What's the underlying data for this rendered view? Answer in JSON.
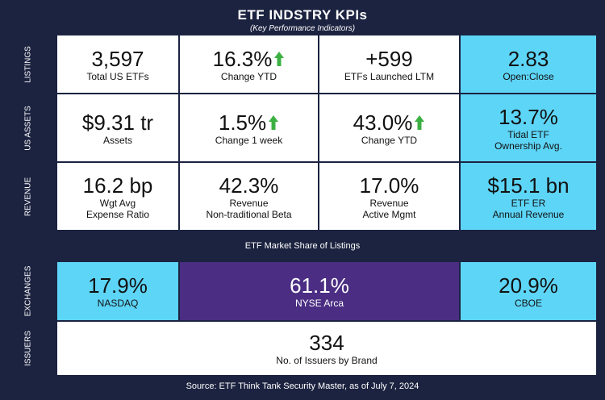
{
  "header": {
    "title": "ETF INDSTRY KPIs",
    "subtitle": "(Key Performance Indicators)"
  },
  "sections": [
    {
      "label": "LISTINGS",
      "cells": [
        {
          "value": "3,597",
          "caption": [
            "Total US ETFs"
          ]
        },
        {
          "value": "16.3%",
          "caption": [
            "Change YTD"
          ]
        },
        {
          "value": "+599",
          "caption": [
            "ETFs Launched LTM"
          ]
        },
        {
          "value": "2.83",
          "caption": [
            "Open:Close"
          ]
        }
      ]
    },
    {
      "label": "US ASSETS",
      "cells": [
        {
          "value": "$9.31 tr",
          "caption": [
            "Assets"
          ]
        },
        {
          "value": "1.5%",
          "caption": [
            "Change 1 week"
          ]
        },
        {
          "value": "43.0%",
          "caption": [
            "Change YTD"
          ]
        },
        {
          "value": "13.7%",
          "caption": [
            "Tidal ETF",
            "Ownership Avg."
          ]
        }
      ]
    },
    {
      "label": "REVENUE",
      "cells": [
        {
          "value": "16.2 bp",
          "caption": [
            "Wgt Avg",
            "Expense Ratio"
          ]
        },
        {
          "value": "42.3%",
          "caption": [
            "Revenue",
            "Non-traditional Beta"
          ]
        },
        {
          "value": "17.0%",
          "caption": [
            "Revenue",
            "Active Mgmt"
          ]
        },
        {
          "value": "$15.1 bn",
          "caption": [
            "ETF ER",
            "Annual Revenue"
          ]
        }
      ]
    },
    {
      "label": "EXCHANGES",
      "cells": [
        {
          "value": "17.9%",
          "caption": [
            "NASDAQ"
          ]
        },
        {
          "value": "61.1%",
          "caption": [
            "NYSE Arca"
          ]
        },
        {
          "value": "20.9%",
          "caption": [
            "CBOE"
          ]
        }
      ]
    },
    {
      "label": "ISSUERS",
      "cells": [
        {
          "value": "334",
          "caption": [
            "No. of Issuers by Brand"
          ]
        }
      ]
    }
  ],
  "market_share_title": "ETF Market Share of Listings",
  "source": "Source: ETF Think Tank Security Master, as of July 7, 2024"
}
